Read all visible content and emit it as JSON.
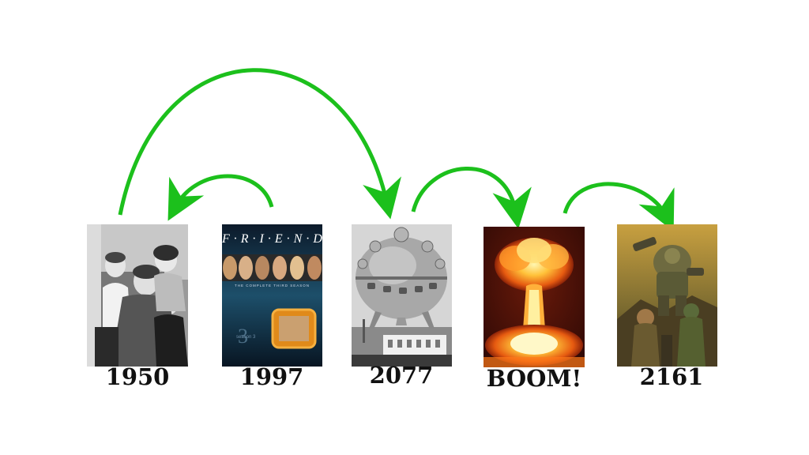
{
  "arrow_color": "#1cc01c",
  "panels": [
    {
      "label": "1950"
    },
    {
      "label": "1997",
      "cover_title": "F·R·I·E·N·D·S",
      "cover_subtitle": "THE COMPLETE THIRD SEASON",
      "cover_season": "season 3"
    },
    {
      "label": "2077"
    },
    {
      "label": "BOOM!"
    },
    {
      "label": "2161"
    }
  ]
}
